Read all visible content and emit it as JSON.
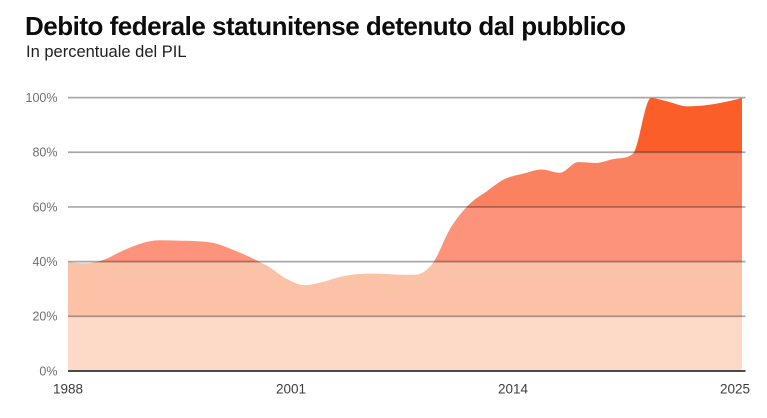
{
  "chart_data": {
    "type": "area",
    "title": "Debito federale statunitense detenuto dal pubblico",
    "subtitle": "In percentuale del PIL",
    "ylabel": "",
    "xlabel": "",
    "ylim": [
      0,
      100
    ],
    "grid": true,
    "legend": false,
    "x": [
      1988,
      1989,
      1990,
      1991,
      1992,
      1993,
      1994,
      1995,
      1996,
      1997,
      1998,
      1999,
      2000,
      2001,
      2002,
      2003,
      2004,
      2005,
      2006,
      2007,
      2008,
      2009,
      2010,
      2011,
      2012,
      2013,
      2014,
      2015,
      2016,
      2017,
      2018,
      2019,
      2020,
      2021,
      2022,
      2023,
      2024,
      2025
    ],
    "values": [
      39.8,
      39.4,
      40.8,
      44.0,
      46.6,
      47.8,
      47.7,
      47.5,
      46.8,
      44.5,
      41.6,
      38.2,
      33.7,
      31.4,
      32.6,
      34.5,
      35.5,
      35.6,
      35.3,
      35.2,
      39.2,
      52.3,
      60.8,
      65.8,
      70.3,
      72.2,
      73.7,
      72.5,
      76.4,
      76.1,
      77.6,
      79.4,
      99.8,
      98.4,
      96.8,
      97.2,
      98.3,
      99.8
    ],
    "yticks": [
      "0%",
      "20%",
      "40%",
      "60%",
      "80%",
      "100%"
    ],
    "xticks": [
      "1988",
      "2001",
      "2014",
      "2025"
    ],
    "band_colors_bottom_to_top": [
      "#fdd9c8",
      "#fcc2a7",
      "#fc937a",
      "#fb8260",
      "#fc5e2a"
    ],
    "gridline_color": "rgba(0,0,0,0.34)",
    "baseline_color": "#4a4a4a",
    "ytick_label_color": "#6e6e6e",
    "xtick_label_color": "#3d3d3d"
  }
}
